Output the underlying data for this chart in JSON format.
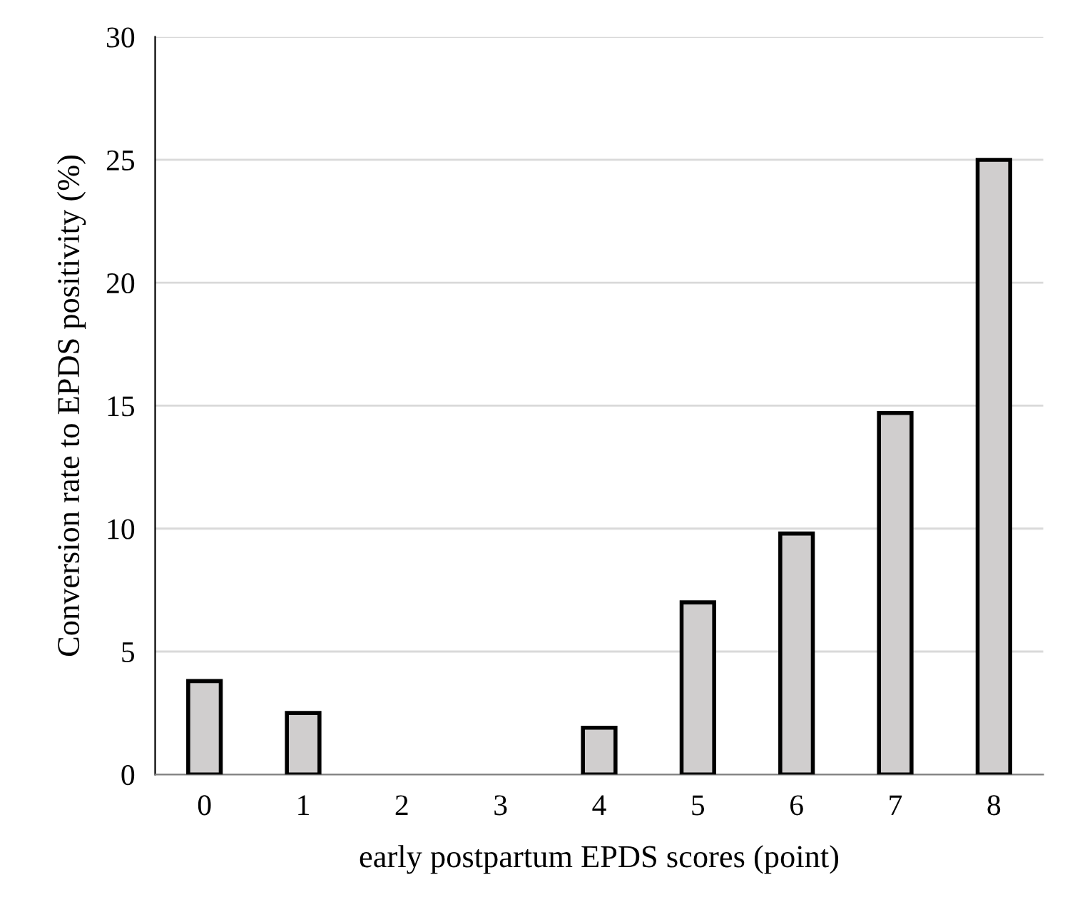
{
  "chart_data": {
    "type": "bar",
    "xlabel": "early postpartum EPDS scores (point)",
    "ylabel": "Conversion rate to EPDS positivity (%)",
    "categories": [
      "0",
      "1",
      "2",
      "3",
      "4",
      "5",
      "6",
      "7",
      "8"
    ],
    "values": [
      3.8,
      2.5,
      0,
      0,
      1.9,
      7.0,
      9.8,
      14.7,
      25
    ],
    "color": "#d0cece",
    "ylim": [
      0,
      30
    ],
    "yticks": [
      0,
      5,
      10,
      15,
      20,
      25,
      30
    ],
    "grid": "y"
  }
}
